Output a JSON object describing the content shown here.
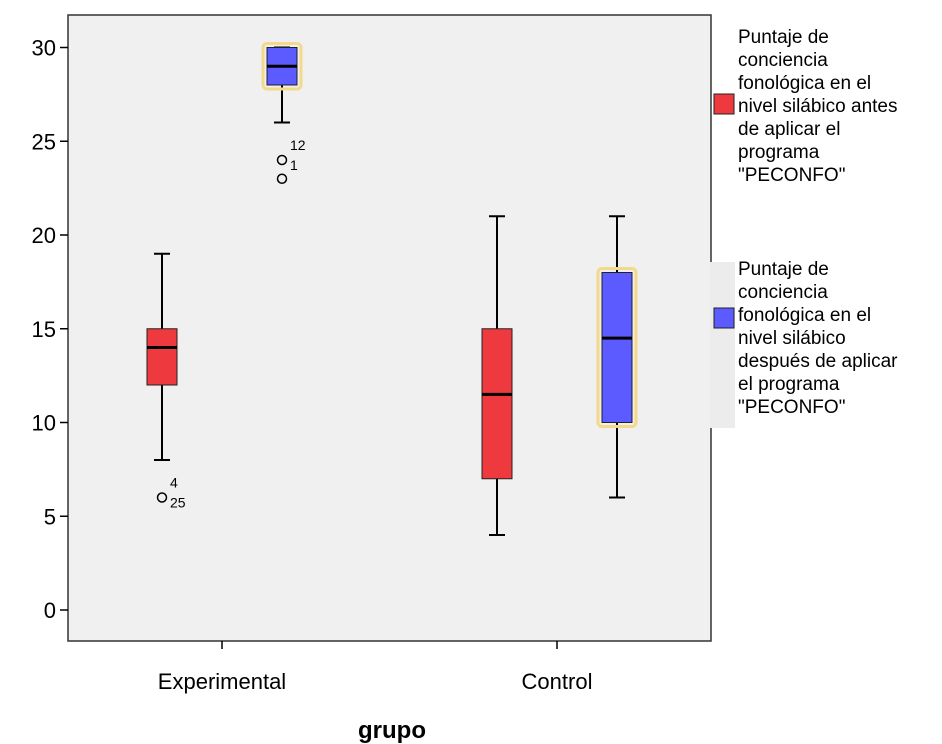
{
  "chart_data": {
    "type": "boxplot",
    "xlabel": "grupo",
    "ylabel": "",
    "categories": [
      "Experimental",
      "Control"
    ],
    "ylim": [
      -1.5,
      32
    ],
    "yticks": [
      0,
      5,
      10,
      15,
      20,
      25,
      30
    ],
    "grid": false,
    "legend_position": "right",
    "series": [
      {
        "name": "Puntaje de conciencia fonológica en el nivel silábico antes de aplicar el programa \"PECONFO\"",
        "legend_lines": [
          "Puntaje de",
          "conciencia",
          "fonológica en el",
          "nivel silábico antes",
          "de aplicar el",
          "programa",
          "\"PECONFO\""
        ],
        "color": "#ee3a3f",
        "boxes": [
          {
            "category": "Experimental",
            "min": 8,
            "q1": 12,
            "median": 14,
            "q3": 15,
            "max": 19,
            "outliers": [
              {
                "value": 6,
                "labels": [
                  "4",
                  "25"
                ]
              }
            ]
          },
          {
            "category": "Control",
            "min": 4,
            "q1": 7,
            "median": 11.5,
            "q3": 15,
            "max": 21,
            "outliers": []
          }
        ]
      },
      {
        "name": "Puntaje de conciencia fonológica en el nivel silábico después de aplicar el programa \"PECONFO\"",
        "legend_lines": [
          "Puntaje de",
          "conciencia",
          "fonológica en el",
          "nivel silábico",
          "después de aplicar",
          "el programa",
          "\"PECONFO\""
        ],
        "color": "#5b5bff",
        "boxes": [
          {
            "category": "Experimental",
            "min": 26,
            "q1": 28,
            "median": 29,
            "q3": 30,
            "max": 30,
            "outliers": [
              {
                "value": 24,
                "labels": [
                  "12",
                  "1"
                ]
              },
              {
                "value": 23,
                "labels": []
              }
            ]
          },
          {
            "category": "Control",
            "min": 6,
            "q1": 10,
            "median": 14.5,
            "q3": 18,
            "max": 21,
            "outliers": []
          }
        ]
      }
    ]
  }
}
